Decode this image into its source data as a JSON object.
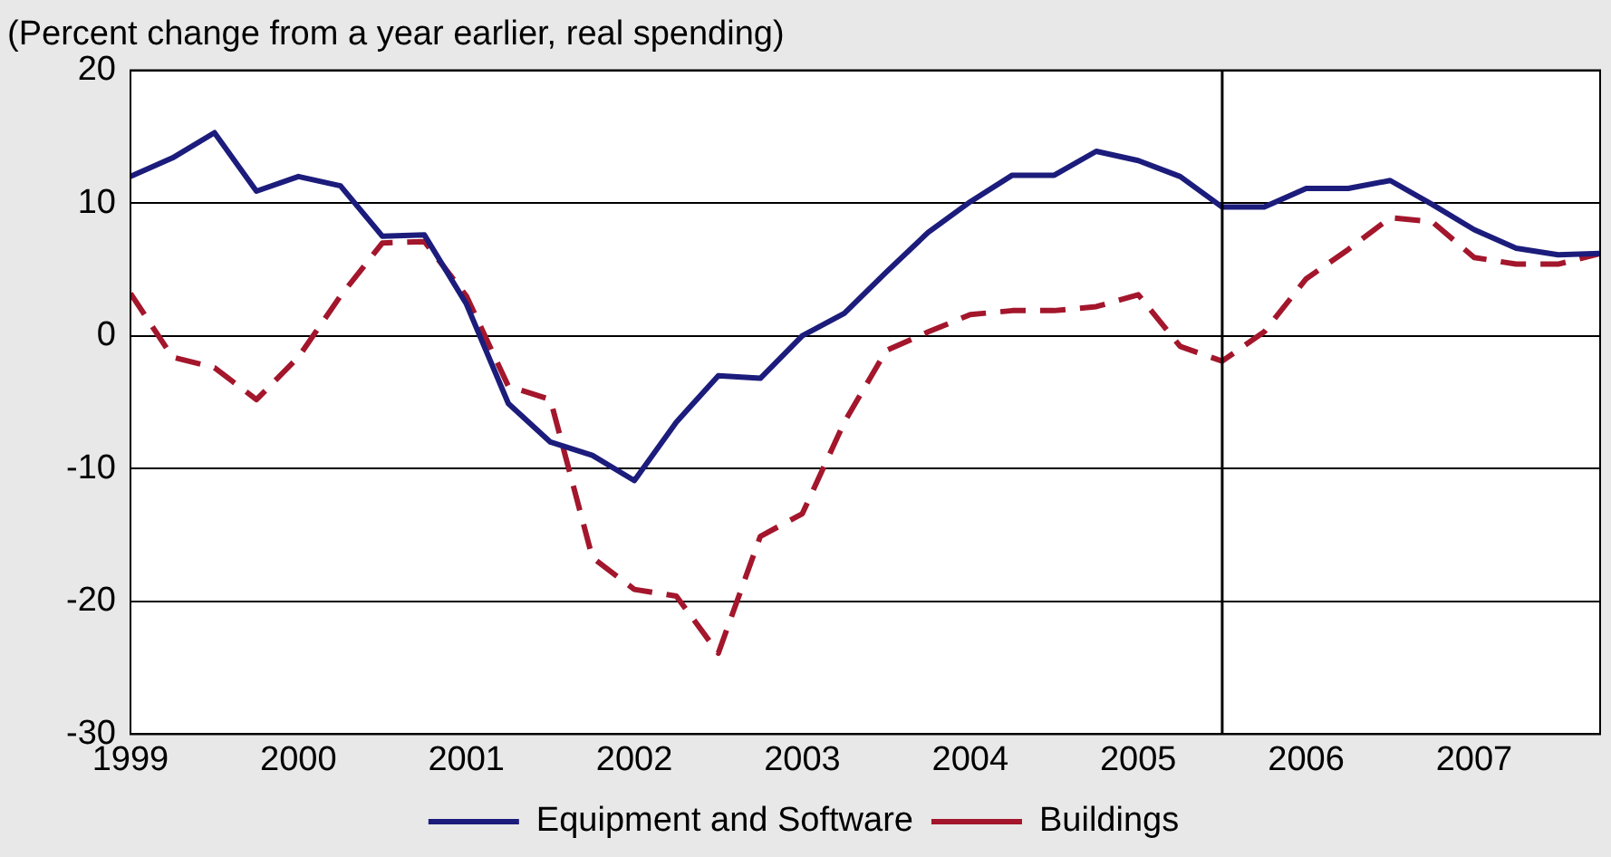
{
  "chart_data": {
    "type": "line",
    "title": "(Percent change from a year earlier, real spending)",
    "x": [
      1999,
      1999.25,
      1999.5,
      1999.75,
      2000,
      2000.25,
      2000.5,
      2000.75,
      2001,
      2001.25,
      2001.5,
      2001.75,
      2002,
      2002.25,
      2002.5,
      2002.75,
      2003,
      2003.25,
      2003.5,
      2003.75,
      2004,
      2004.25,
      2004.5,
      2004.75,
      2005,
      2005.25,
      2005.5,
      2005.75,
      2006,
      2006.25,
      2006.5,
      2006.75,
      2007,
      2007.25,
      2007.5,
      2007.75
    ],
    "series": [
      {
        "name": "Equipment and Software",
        "color": "#1c1c7c",
        "line_style": "solid",
        "values": [
          12,
          13.4,
          15.3,
          10.9,
          12,
          11.3,
          7.5,
          7.6,
          2.4,
          -5.1,
          -8,
          -9,
          -10.9,
          -6.5,
          -3,
          -3.2,
          0,
          1.7,
          4.8,
          7.8,
          10.1,
          12.1,
          12.1,
          13.9,
          13.2,
          12,
          9.7,
          9.7,
          11.1,
          11.1,
          11.7,
          9.9,
          8,
          6.6,
          6.1,
          6.2
        ]
      },
      {
        "name": "Buildings",
        "color": "#a3162c",
        "line_style": "dashed",
        "values": [
          3.2,
          -1.6,
          -2.4,
          -4.8,
          -1.6,
          3,
          7,
          7.1,
          3,
          -3.8,
          -4.8,
          -16.7,
          -19.1,
          -19.6,
          -23.9,
          -15.1,
          -13.4,
          -6.5,
          -1.1,
          0.3,
          1.6,
          1.9,
          1.9,
          2.2,
          3.1,
          -0.8,
          -1.9,
          0.3,
          4.3,
          6.5,
          8.9,
          8.6,
          5.9,
          5.4,
          5.4,
          6.2
        ]
      }
    ],
    "xlim": [
      1999,
      2007.75
    ],
    "xticks": [
      1999,
      2000,
      2001,
      2002,
      2003,
      2004,
      2005,
      2006,
      2007
    ],
    "ylim": [
      -30,
      20
    ],
    "yticks": [
      -30,
      -20,
      -10,
      0,
      10,
      20
    ],
    "ref_lines": [
      {
        "axis": "x",
        "value": 2005.5,
        "color": "#000000"
      }
    ],
    "grid": "y",
    "legend": "bottom",
    "marker": "none"
  }
}
